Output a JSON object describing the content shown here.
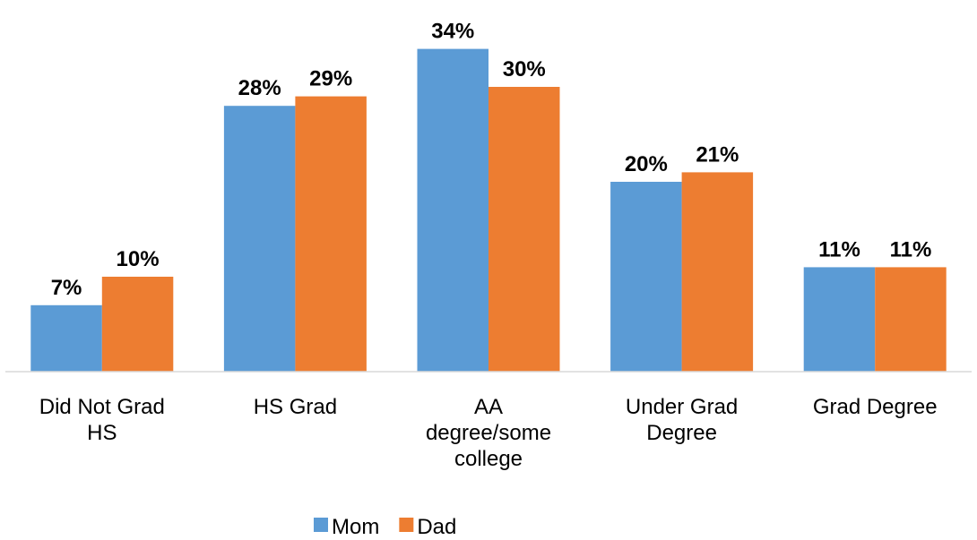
{
  "chart_data": {
    "type": "bar",
    "categories": [
      "Did Not Grad HS",
      "HS Grad",
      "AA degree/some college",
      "Under Grad Degree",
      "Grad Degree"
    ],
    "series": [
      {
        "name": "Mom",
        "color": "#5b9bd5",
        "values": [
          7,
          28,
          34,
          20,
          11
        ],
        "value_labels": [
          "7%",
          "28%",
          "34%",
          "20%",
          "11%"
        ]
      },
      {
        "name": "Dad",
        "color": "#ed7d31",
        "values": [
          10,
          29,
          30,
          21,
          11
        ],
        "value_labels": [
          "10%",
          "29%",
          "30%",
          "21%",
          "11%"
        ]
      }
    ],
    "ylim": [
      0,
      35
    ],
    "legend": "bottom"
  }
}
